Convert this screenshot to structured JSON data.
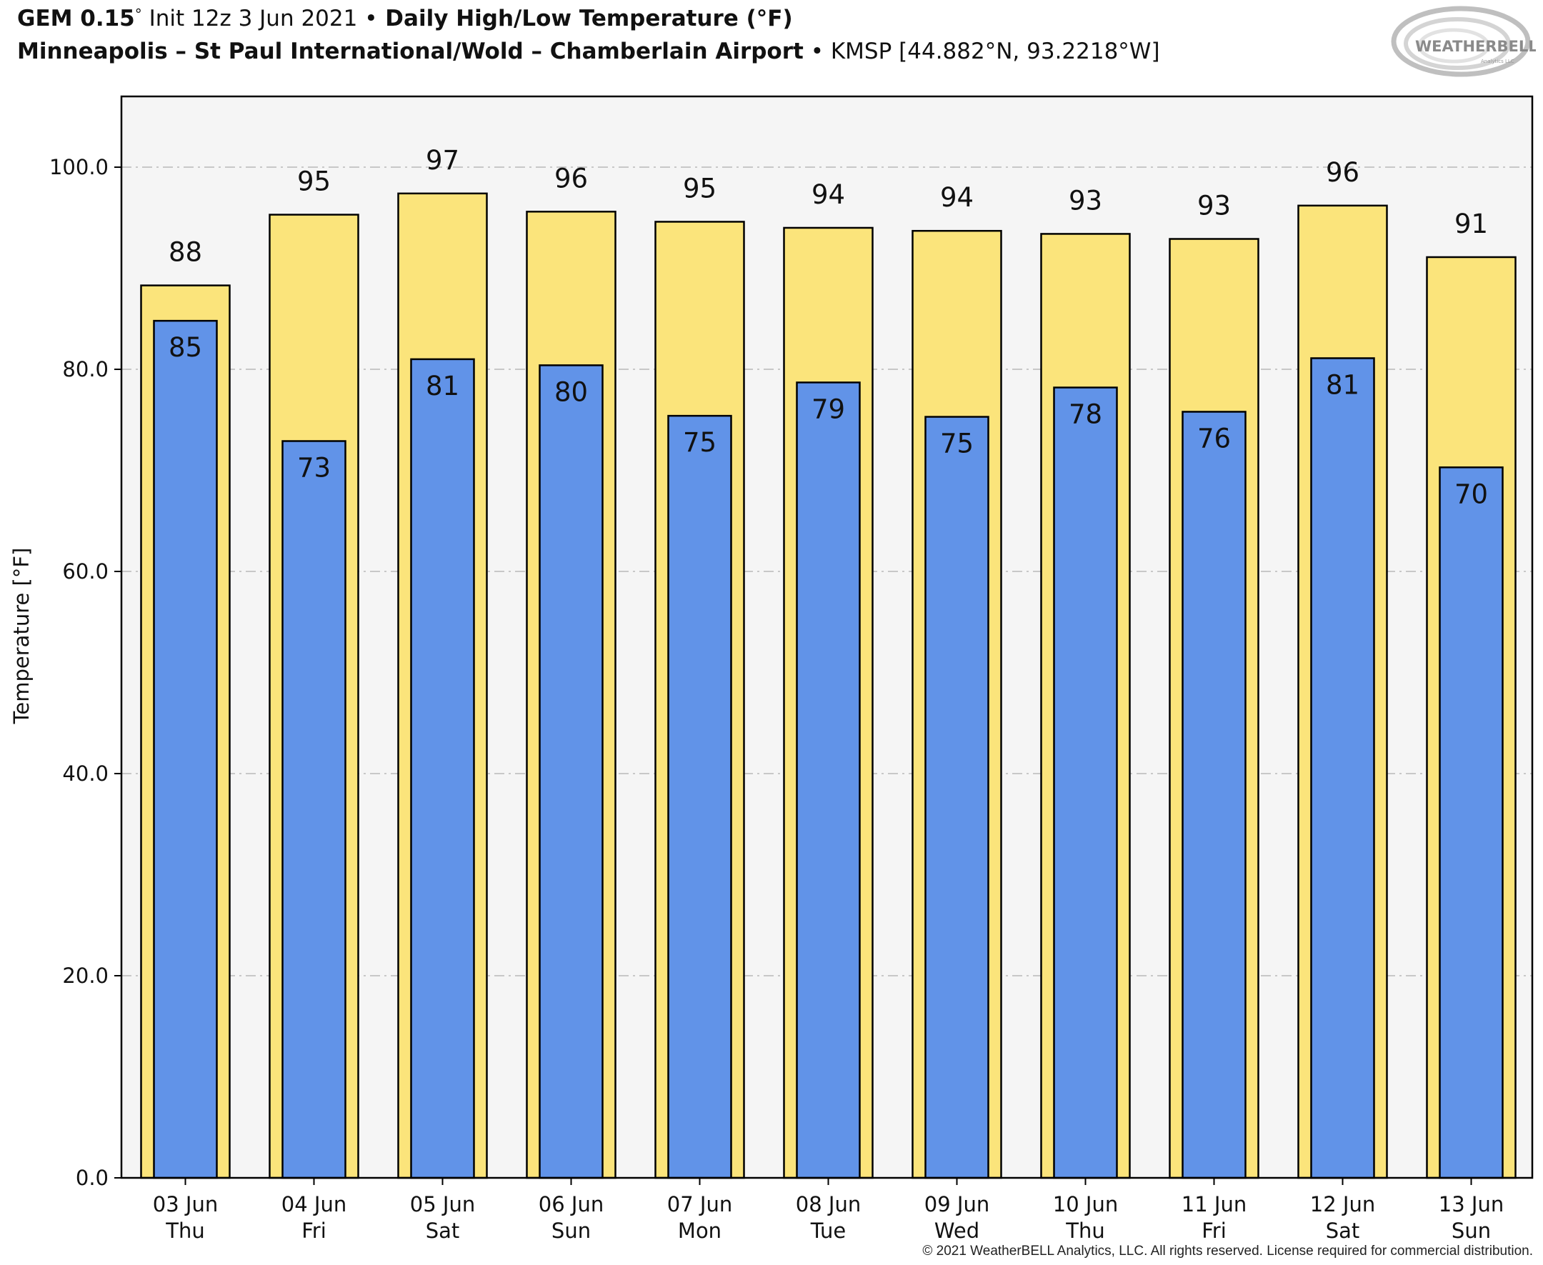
{
  "header": {
    "model": "GEM 0.15",
    "deg": "°",
    "init": " Init 12z 3 Jun 2021 ",
    "bullet": "•",
    "product": " Daily High/Low Temperature (°F)",
    "location": "Minneapolis – St Paul International/Wold – Chamberlain Airport",
    "station": " KMSP [44.882°N, 93.2218°W]"
  },
  "logo": {
    "text": "WEATHERBELL",
    "subtext": "Analytics LLC"
  },
  "copyright": "© 2021 WeatherBELL Analytics, LLC. All rights reserved. License required for commercial distribution.",
  "colors": {
    "high": "#fbe47b",
    "low": "#6193e8",
    "plot_bg": "#f5f5f5",
    "grid": "#c8c8c8"
  },
  "chart_data": {
    "type": "bar",
    "ylabel": "Temperature [°F]",
    "ylim": [
      0,
      107
    ],
    "yticks": [
      "0.0",
      "20.0",
      "40.0",
      "60.0",
      "80.0",
      "100.0"
    ],
    "grid": true,
    "categories": [
      [
        "03 Jun",
        "Thu"
      ],
      [
        "04 Jun",
        "Fri"
      ],
      [
        "05 Jun",
        "Sat"
      ],
      [
        "06 Jun",
        "Sun"
      ],
      [
        "07 Jun",
        "Mon"
      ],
      [
        "08 Jun",
        "Tue"
      ],
      [
        "09 Jun",
        "Wed"
      ],
      [
        "10 Jun",
        "Thu"
      ],
      [
        "11 Jun",
        "Fri"
      ],
      [
        "12 Jun",
        "Sat"
      ],
      [
        "13 Jun",
        "Sun"
      ]
    ],
    "series": [
      {
        "role": "high",
        "values": [
          88.3,
          95.3,
          97.4,
          95.6,
          94.6,
          94.0,
          93.7,
          93.4,
          92.9,
          96.2,
          91.1
        ],
        "labels": [
          "88",
          "95",
          "97",
          "96",
          "95",
          "94",
          "94",
          "93",
          "93",
          "96",
          "91"
        ]
      },
      {
        "role": "low",
        "values": [
          84.8,
          72.9,
          81.0,
          80.4,
          75.4,
          78.7,
          75.3,
          78.2,
          75.8,
          81.1,
          70.3
        ],
        "labels": [
          "85",
          "73",
          "81",
          "80",
          "75",
          "79",
          "75",
          "78",
          "76",
          "81",
          "70"
        ]
      }
    ]
  }
}
